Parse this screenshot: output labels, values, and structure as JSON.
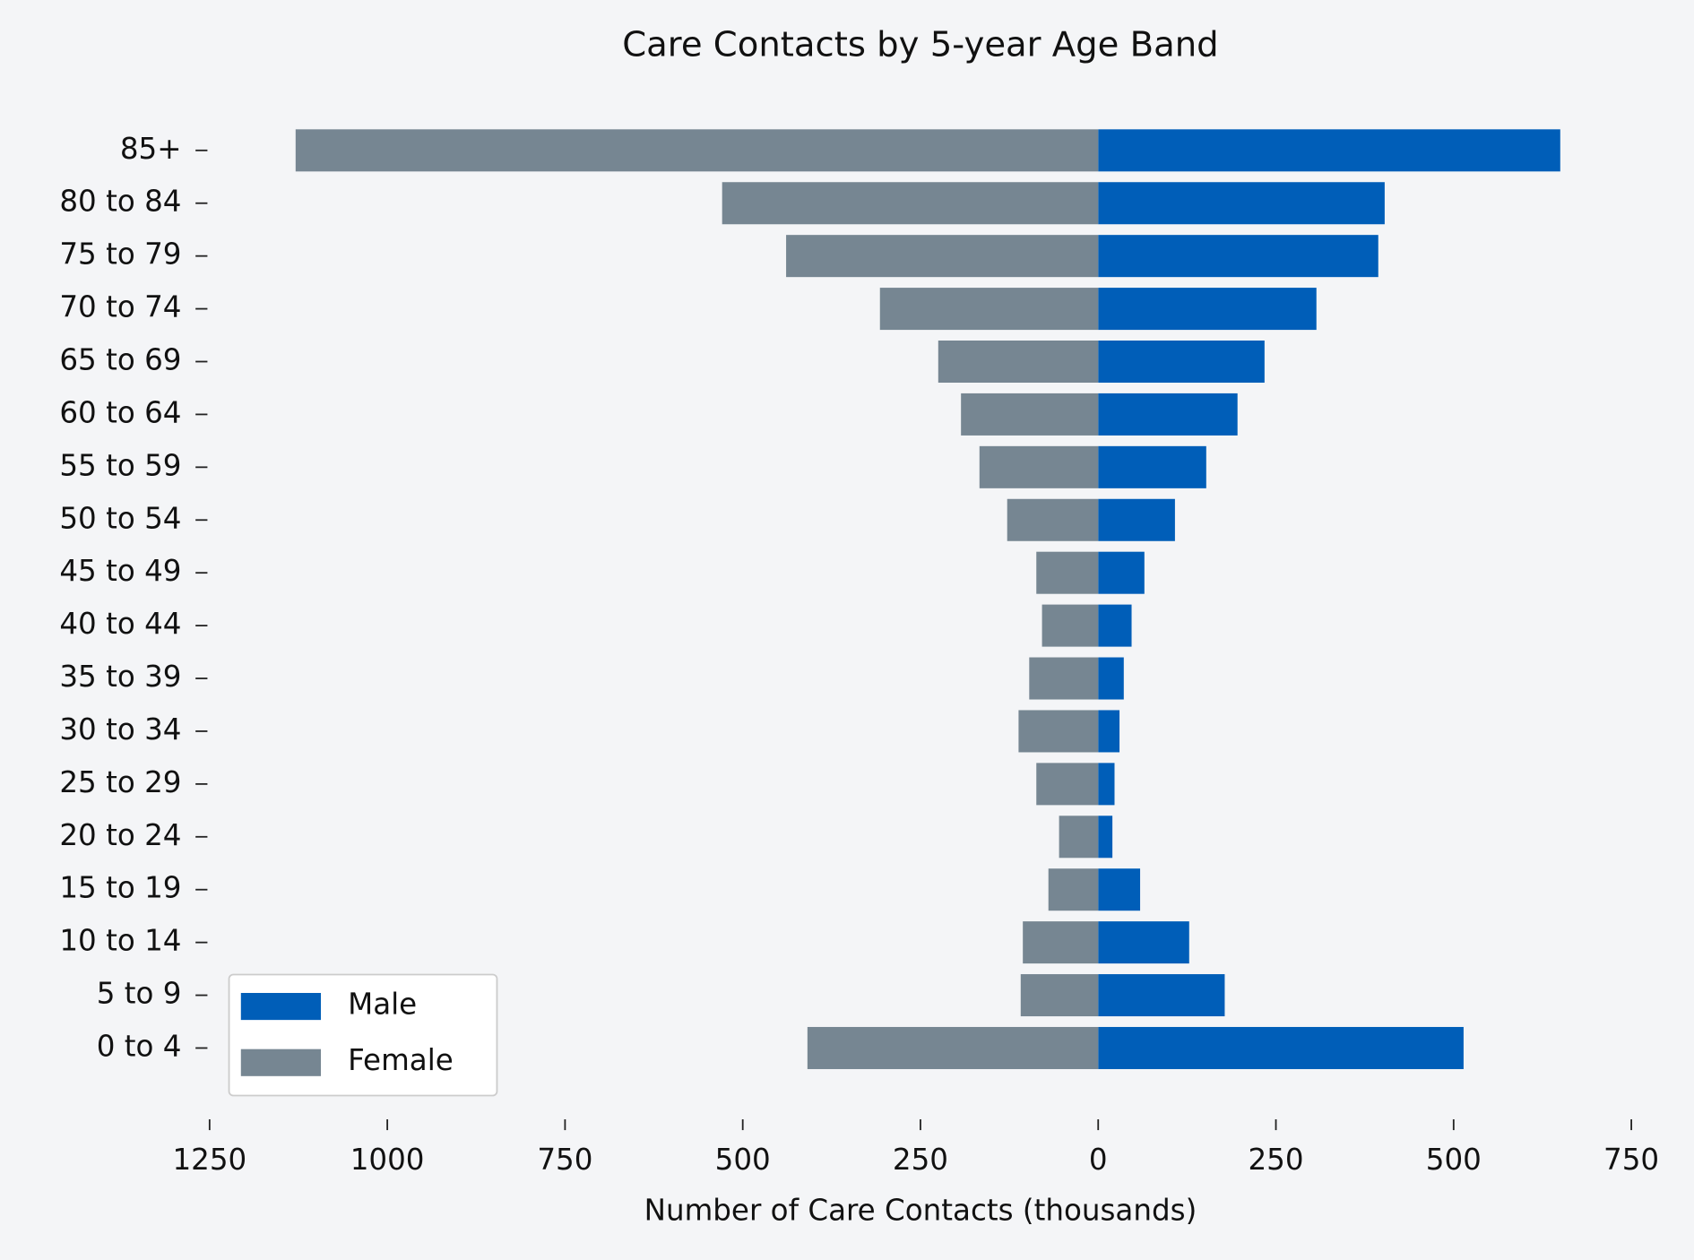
{
  "chart_data": {
    "type": "pyramid",
    "title": "Care Contacts by 5-year Age Band",
    "x_label": "Number of Care Contacts (thousands)",
    "categories": [
      "0 to 4",
      "5 to 9",
      "10 to 14",
      "15 to 19",
      "20 to 24",
      "25 to 29",
      "30 to 34",
      "35 to 39",
      "40 to 44",
      "45 to 49",
      "50 to 54",
      "55 to 59",
      "60 to 64",
      "65 to 69",
      "70 to 74",
      "75 to 79",
      "80 to 84",
      "85+"
    ],
    "series": [
      {
        "name": "Male",
        "color": "#005eb8",
        "values": [
          514,
          178,
          128,
          59,
          20,
          23,
          30,
          36,
          47,
          65,
          108,
          152,
          196,
          234,
          307,
          394,
          403,
          650
        ]
      },
      {
        "name": "Female",
        "color": "#768692",
        "values": [
          -409,
          -109,
          -106,
          -70,
          -55,
          -87,
          -112,
          -97,
          -79,
          -87,
          -128,
          -167,
          -193,
          -225,
          -307,
          -439,
          -529,
          -1129
        ]
      }
    ],
    "xlim": [
      -1250,
      750
    ],
    "xticks": [
      {
        "value": -1250,
        "label": "1250"
      },
      {
        "value": -1000,
        "label": "1000"
      },
      {
        "value": -750,
        "label": "750"
      },
      {
        "value": -500,
        "label": "500"
      },
      {
        "value": -250,
        "label": "250"
      },
      0,
      250,
      500,
      750
    ],
    "legend": "lower left"
  }
}
